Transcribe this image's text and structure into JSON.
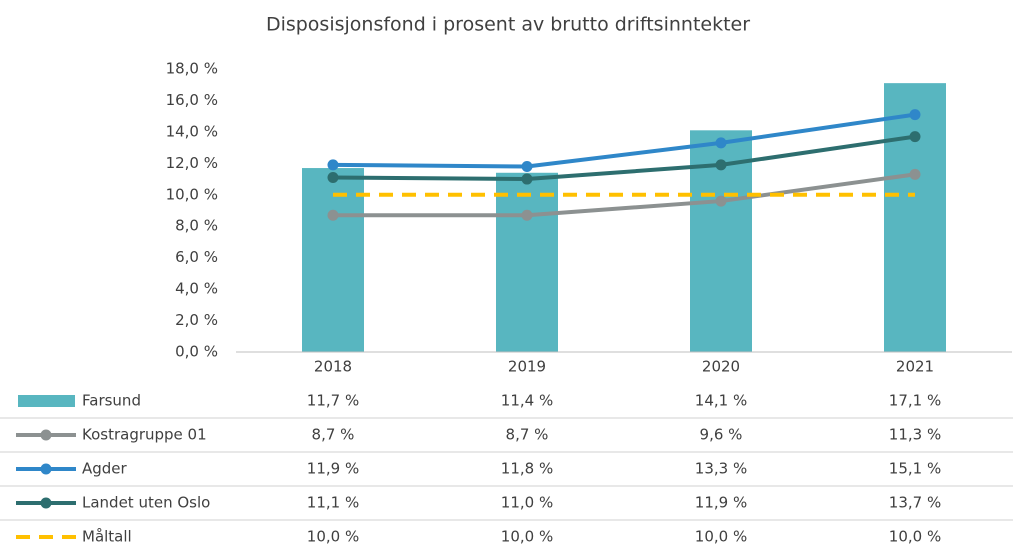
{
  "chart_data": {
    "type": "bar",
    "title": "Disposisjonsfond i prosent av brutto driftsinntekter",
    "categories": [
      "2018",
      "2019",
      "2020",
      "2021"
    ],
    "ylim": [
      0,
      18
    ],
    "yticks": [
      {
        "value": 0,
        "label": "0,0 %"
      },
      {
        "value": 2,
        "label": "2,0 %"
      },
      {
        "value": 4,
        "label": "4,0 %"
      },
      {
        "value": 6,
        "label": "6,0 %"
      },
      {
        "value": 8,
        "label": "8,0 %"
      },
      {
        "value": 10,
        "label": "10,0 %"
      },
      {
        "value": 12,
        "label": "12,0 %"
      },
      {
        "value": 14,
        "label": "14,0 %"
      },
      {
        "value": 16,
        "label": "16,0 %"
      },
      {
        "value": 18,
        "label": "18,0 %"
      }
    ],
    "grid": false,
    "series": [
      {
        "name": "Farsund",
        "type": "bar",
        "color": "#58b6c0",
        "values": [
          11.7,
          11.4,
          14.1,
          17.1
        ],
        "value_labels": [
          "11,7 %",
          "11,4 %",
          "14,1 %",
          "17,1 %"
        ]
      },
      {
        "name": "Kostragruppe 01",
        "type": "line",
        "color": "#8c9191",
        "markers": true,
        "line_style": "solid",
        "values": [
          8.7,
          8.7,
          9.6,
          11.3
        ],
        "value_labels": [
          "8,7 %",
          "8,7 %",
          "9,6 %",
          "11,3 %"
        ]
      },
      {
        "name": "Agder",
        "type": "line",
        "color": "#2f87c9",
        "markers": true,
        "line_style": "solid",
        "values": [
          11.9,
          11.8,
          13.3,
          15.1
        ],
        "value_labels": [
          "11,9 %",
          "11,8 %",
          "13,3 %",
          "15,1 %"
        ]
      },
      {
        "name": "Landet uten Oslo",
        "type": "line",
        "color": "#2d6e6f",
        "markers": true,
        "line_style": "solid",
        "values": [
          11.1,
          11.0,
          11.9,
          13.7
        ],
        "value_labels": [
          "11,1 %",
          "11,0 %",
          "11,9 %",
          "13,7 %"
        ]
      },
      {
        "name": "Måltall",
        "type": "line",
        "color": "#ffc000",
        "markers": false,
        "line_style": "dashed",
        "values": [
          10.0,
          10.0,
          10.0,
          10.0
        ],
        "value_labels": [
          "10,0 %",
          "10,0 %",
          "10,0 %",
          "10,0 %"
        ]
      }
    ]
  }
}
